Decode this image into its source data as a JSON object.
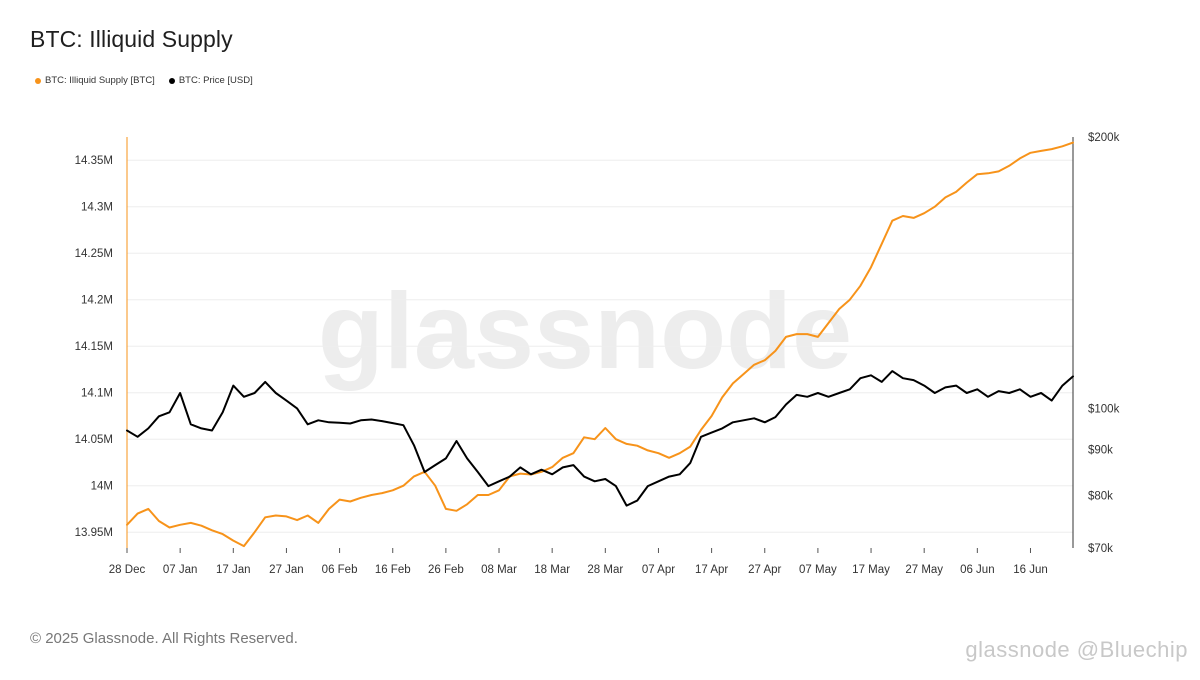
{
  "title": "BTC: Illiquid Supply",
  "footer": "© 2025 Glassnode. All Rights Reserved.",
  "watermark": "glassnode",
  "corner_mark": "glassnode @Bluechip",
  "colors": {
    "supply": "#f7931a",
    "price": "#000000",
    "grid": "#eeeeee",
    "axis_text": "#333333",
    "watermark": "#ededed"
  },
  "chart_data": {
    "type": "line",
    "title": "BTC: Illiquid Supply",
    "x_ticks": [
      "28 Dec",
      "07 Jan",
      "17 Jan",
      "27 Jan",
      "06 Feb",
      "16 Feb",
      "26 Feb",
      "08 Mar",
      "18 Mar",
      "28 Mar",
      "07 Apr",
      "17 Apr",
      "27 Apr",
      "07 May",
      "17 May",
      "27 May",
      "06 Jun",
      "16 Jun"
    ],
    "x_range_days": [
      0,
      178
    ],
    "y_left": {
      "ticks": [
        "13.95M",
        "14M",
        "14.05M",
        "14.1M",
        "14.15M",
        "14.2M",
        "14.25M",
        "14.3M",
        "14.35M"
      ],
      "ylim": [
        13.933,
        14.375
      ],
      "unit": "M BTC"
    },
    "y_right": {
      "ticks": [
        "$70k",
        "$80k",
        "$90k",
        "$100k",
        "$200k"
      ],
      "scale": "log",
      "ylim": [
        70000,
        200000
      ]
    },
    "grid": true,
    "legend_position": "top-left",
    "series": [
      {
        "name": "BTC: Illiquid Supply [BTC]",
        "axis": "left",
        "x": [
          0,
          2,
          4,
          6,
          8,
          10,
          12,
          14,
          16,
          18,
          20,
          22,
          24,
          26,
          28,
          30,
          32,
          34,
          36,
          38,
          40,
          42,
          44,
          46,
          48,
          50,
          52,
          54,
          56,
          58,
          60,
          62,
          64,
          66,
          68,
          70,
          72,
          74,
          76,
          78,
          80,
          82,
          84,
          86,
          88,
          90,
          92,
          94,
          96,
          98,
          100,
          102,
          104,
          106,
          108,
          110,
          112,
          114,
          116,
          118,
          120,
          122,
          124,
          126,
          128,
          130,
          132,
          134,
          136,
          138,
          140,
          142,
          144,
          146,
          148,
          150,
          152,
          154,
          156,
          158,
          160,
          162,
          164,
          166,
          168,
          170,
          172,
          174,
          176,
          178
        ],
        "values": [
          13.958,
          13.97,
          13.975,
          13.962,
          13.955,
          13.958,
          13.96,
          13.957,
          13.952,
          13.948,
          13.941,
          13.935,
          13.95,
          13.966,
          13.968,
          13.967,
          13.963,
          13.968,
          13.96,
          13.975,
          13.985,
          13.983,
          13.987,
          13.99,
          13.992,
          13.995,
          14.0,
          14.01,
          14.015,
          14.0,
          13.975,
          13.973,
          13.98,
          13.99,
          13.99,
          13.995,
          14.01,
          14.013,
          14.012,
          14.015,
          14.02,
          14.03,
          14.035,
          14.052,
          14.05,
          14.062,
          14.05,
          14.045,
          14.043,
          14.038,
          14.035,
          14.03,
          14.035,
          14.042,
          14.06,
          14.075,
          14.095,
          14.11,
          14.12,
          14.13,
          14.135,
          14.145,
          14.16,
          14.163,
          14.163,
          14.16,
          14.175,
          14.19,
          14.2,
          14.215,
          14.235,
          14.26,
          14.285,
          14.29,
          14.288,
          14.293,
          14.3,
          14.31,
          14.316,
          14.326,
          14.335,
          14.336,
          14.338,
          14.344,
          14.352,
          14.358,
          14.36,
          14.362,
          14.365,
          14.369
        ]
      },
      {
        "name": "BTC: Price [USD]",
        "axis": "right",
        "x": [
          0,
          2,
          4,
          6,
          8,
          10,
          12,
          14,
          16,
          18,
          20,
          22,
          24,
          26,
          28,
          30,
          32,
          34,
          36,
          38,
          40,
          42,
          44,
          46,
          48,
          50,
          52,
          54,
          56,
          58,
          60,
          62,
          64,
          66,
          68,
          70,
          72,
          74,
          76,
          78,
          80,
          82,
          84,
          86,
          88,
          90,
          92,
          94,
          96,
          98,
          100,
          102,
          104,
          106,
          108,
          110,
          112,
          114,
          116,
          118,
          120,
          122,
          124,
          126,
          128,
          130,
          132,
          134,
          136,
          138,
          140,
          142,
          144,
          146,
          148,
          150,
          152,
          154,
          156,
          158,
          160,
          162,
          164,
          166,
          168,
          170,
          172,
          174,
          176,
          178
        ],
        "values": [
          94500,
          93000,
          95000,
          98000,
          99000,
          104000,
          96000,
          95000,
          94500,
          99000,
          106000,
          103000,
          104000,
          107000,
          104000,
          102000,
          100000,
          96000,
          97000,
          96500,
          96400,
          96200,
          97000,
          97200,
          96800,
          96300,
          95800,
          91000,
          85000,
          86500,
          88000,
          92000,
          88000,
          85000,
          82000,
          83000,
          84000,
          86000,
          84500,
          85500,
          84500,
          86000,
          86500,
          84000,
          83000,
          83500,
          82000,
          78000,
          79000,
          82000,
          83000,
          84000,
          84500,
          87000,
          93000,
          94000,
          95000,
          96500,
          97000,
          97500,
          96500,
          97800,
          101000,
          103500,
          103000,
          104000,
          103000,
          104000,
          105000,
          108000,
          108800,
          107000,
          110000,
          108000,
          107500,
          106000,
          104000,
          105500,
          106000,
          104000,
          105000,
          103000,
          104500,
          104000,
          105000,
          103000,
          104000,
          102000,
          106000,
          108500
        ]
      }
    ]
  }
}
